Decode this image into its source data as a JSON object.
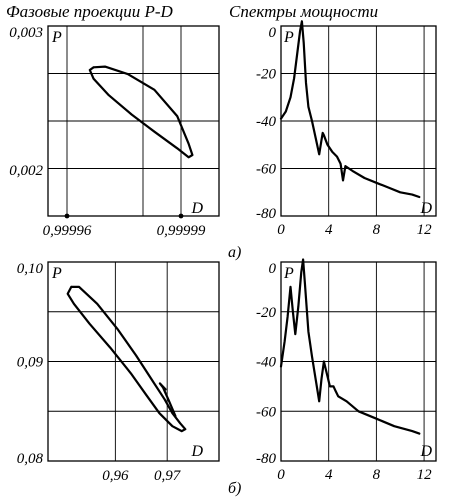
{
  "headings": {
    "left": "Фазовые проекции P-D",
    "right": "Спектры мощности"
  },
  "captions": {
    "a": "а)",
    "b": "б)"
  },
  "chart_data": [
    {
      "id": "a_phase",
      "type": "line",
      "xlabel": "D",
      "ylabel": "P",
      "xlim": [
        0.999955,
        1.0
      ],
      "ylim": [
        0.00168,
        0.003
      ],
      "xticks": [
        {
          "value": 0.99996,
          "label": "0,99996"
        },
        {
          "value": 0.99999,
          "label": "0,99999"
        }
      ],
      "yticks": [
        {
          "value": 0.003,
          "label": "0,003"
        },
        {
          "value": 0.002,
          "label": "0,002"
        }
      ],
      "xgrid": [
        0.99996,
        0.99998,
        0.99999
      ],
      "ygrid": [
        0.00267,
        0.00234,
        0.00201,
        0.00168
      ],
      "grid": true,
      "series": [
        {
          "x": [
            0.999967,
            0.99997,
            0.999976,
            0.999983,
            0.999989,
            0.999992,
            0.999993,
            0.999992,
            0.999989,
            0.999983,
            0.999977,
            0.999971,
            0.999967,
            0.999966,
            0.999967
          ],
          "y": [
            0.002713,
            0.002718,
            0.002666,
            0.002557,
            0.002374,
            0.002182,
            0.002104,
            0.002088,
            0.00215,
            0.002266,
            0.002385,
            0.002519,
            0.002633,
            0.002694,
            0.002713
          ]
        }
      ]
    },
    {
      "id": "a_spectrum",
      "type": "line",
      "xlabel": "D",
      "ylabel": "P",
      "xlim": [
        0,
        13
      ],
      "ylim": [
        -80,
        0
      ],
      "xticks": [
        {
          "value": 0,
          "label": "0"
        },
        {
          "value": 4,
          "label": "4"
        },
        {
          "value": 8,
          "label": "8"
        },
        {
          "value": 12,
          "label": "12"
        }
      ],
      "yticks": [
        {
          "value": 0,
          "label": "0"
        },
        {
          "value": -20,
          "label": "-20"
        },
        {
          "value": -40,
          "label": "-40"
        },
        {
          "value": -60,
          "label": "-60"
        },
        {
          "value": -80,
          "label": "-80"
        }
      ],
      "xgrid": [
        4,
        8,
        12
      ],
      "ygrid": [
        -20,
        -40,
        -60
      ],
      "grid": true,
      "series": [
        {
          "x": [
            0,
            0.4,
            0.8,
            1.1,
            1.4,
            1.6,
            1.75,
            1.9,
            2.1,
            2.3,
            2.6,
            2.9,
            3.2,
            3.4,
            3.5,
            3.6,
            3.9,
            4.3,
            4.7,
            5.0,
            5.2,
            5.4,
            6,
            7,
            8,
            9,
            10,
            11,
            11.6
          ],
          "y": [
            -39,
            -36,
            -30,
            -22,
            -10,
            -2,
            2,
            -7,
            -24,
            -34,
            -40,
            -47,
            -54,
            -48,
            -45,
            -46,
            -50,
            -53,
            -55,
            -58,
            -65,
            -59,
            -61,
            -64,
            -66,
            -68,
            -70,
            -71,
            -72
          ]
        }
      ]
    },
    {
      "id": "b_phase",
      "type": "line",
      "xlabel": "D",
      "ylabel": "P",
      "xlim": [
        0.947,
        0.98
      ],
      "ylim": [
        0.08,
        0.1
      ],
      "xticks": [
        {
          "value": 0.96,
          "label": "0,96"
        },
        {
          "value": 0.97,
          "label": "0,97"
        }
      ],
      "yticks": [
        {
          "value": 0.1,
          "label": "0,10"
        },
        {
          "value": 0.09,
          "label": "0,09"
        },
        {
          "value": 0.08,
          "label": "0,08"
        }
      ],
      "xgrid": [
        0.96,
        0.97
      ],
      "ygrid": [
        0.095,
        0.09,
        0.085
      ],
      "grid": true,
      "series": [
        {
          "x": [
            0.9515,
            0.953,
            0.9565,
            0.9605,
            0.964,
            0.967,
            0.9695,
            0.971,
            0.9725,
            0.9735,
            0.9728,
            0.971,
            0.9685,
            0.966,
            0.963,
            0.959,
            0.955,
            0.952,
            0.9508,
            0.9515
          ],
          "y": [
            0.0975,
            0.0975,
            0.0958,
            0.0932,
            0.0906,
            0.0882,
            0.0862,
            0.0848,
            0.0838,
            0.0832,
            0.083,
            0.0835,
            0.0848,
            0.0866,
            0.0888,
            0.0914,
            0.0938,
            0.0958,
            0.0968,
            0.0975
          ]
        },
        {
          "x": [
            0.9716,
            0.9703,
            0.9692,
            0.9686,
            0.9697
          ],
          "y": [
            0.0845,
            0.0861,
            0.0874,
            0.0878,
            0.0872
          ]
        }
      ]
    },
    {
      "id": "b_spectrum",
      "type": "line",
      "xlabel": "D",
      "ylabel": "P",
      "xlim": [
        0,
        13
      ],
      "ylim": [
        -80,
        0
      ],
      "xticks": [
        {
          "value": 0,
          "label": "0"
        },
        {
          "value": 4,
          "label": "4"
        },
        {
          "value": 8,
          "label": "8"
        },
        {
          "value": 12,
          "label": "12"
        }
      ],
      "yticks": [
        {
          "value": 0,
          "label": "0"
        },
        {
          "value": -20,
          "label": "-20"
        },
        {
          "value": -40,
          "label": "-40"
        },
        {
          "value": -60,
          "label": "-60"
        },
        {
          "value": -80,
          "label": "-80"
        }
      ],
      "xgrid": [
        4,
        8,
        12
      ],
      "ygrid": [
        -20,
        -40,
        -60
      ],
      "grid": true,
      "series": [
        {
          "x": [
            0,
            0.3,
            0.55,
            0.8,
            1.0,
            1.2,
            1.45,
            1.7,
            1.85,
            2.0,
            2.3,
            2.6,
            2.9,
            3.2,
            3.4,
            3.6,
            3.9,
            4.1,
            4.4,
            4.6,
            4.8,
            5.5,
            6.5,
            8,
            9.5,
            11,
            11.6
          ],
          "y": [
            -42,
            -32,
            -22,
            -10,
            -20,
            -29,
            -18,
            -4,
            1,
            -8,
            -28,
            -38,
            -47,
            -56,
            -47,
            -40,
            -46,
            -50,
            -50,
            -52,
            -54,
            -56,
            -60,
            -63,
            -66,
            -68,
            -69
          ]
        }
      ]
    }
  ]
}
